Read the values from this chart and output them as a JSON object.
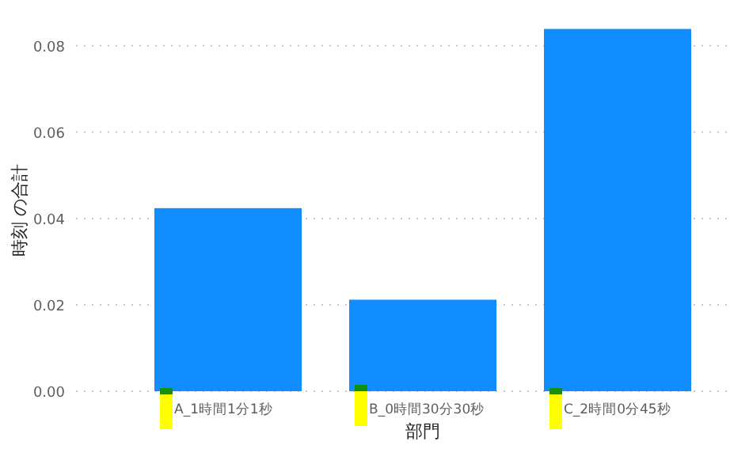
{
  "chart_data": {
    "type": "bar",
    "xlabel": "部門",
    "ylabel": "時刻 の合計",
    "categories": [
      "A_1時間1分1秒",
      "B_0時間30分30秒",
      "C_2時間0分45秒"
    ],
    "values": [
      0.0424,
      0.0212,
      0.0839
    ],
    "color": "#118dff",
    "ylim": [
      0,
      0.084
    ],
    "yticks": [
      {
        "value": 0,
        "label": "0.00"
      },
      {
        "value": 0.02,
        "label": "0.02"
      },
      {
        "value": 0.04,
        "label": "0.04"
      },
      {
        "value": 0.06,
        "label": "0.06"
      },
      {
        "value": 0.08,
        "label": "0.08"
      }
    ],
    "grid": "y"
  }
}
